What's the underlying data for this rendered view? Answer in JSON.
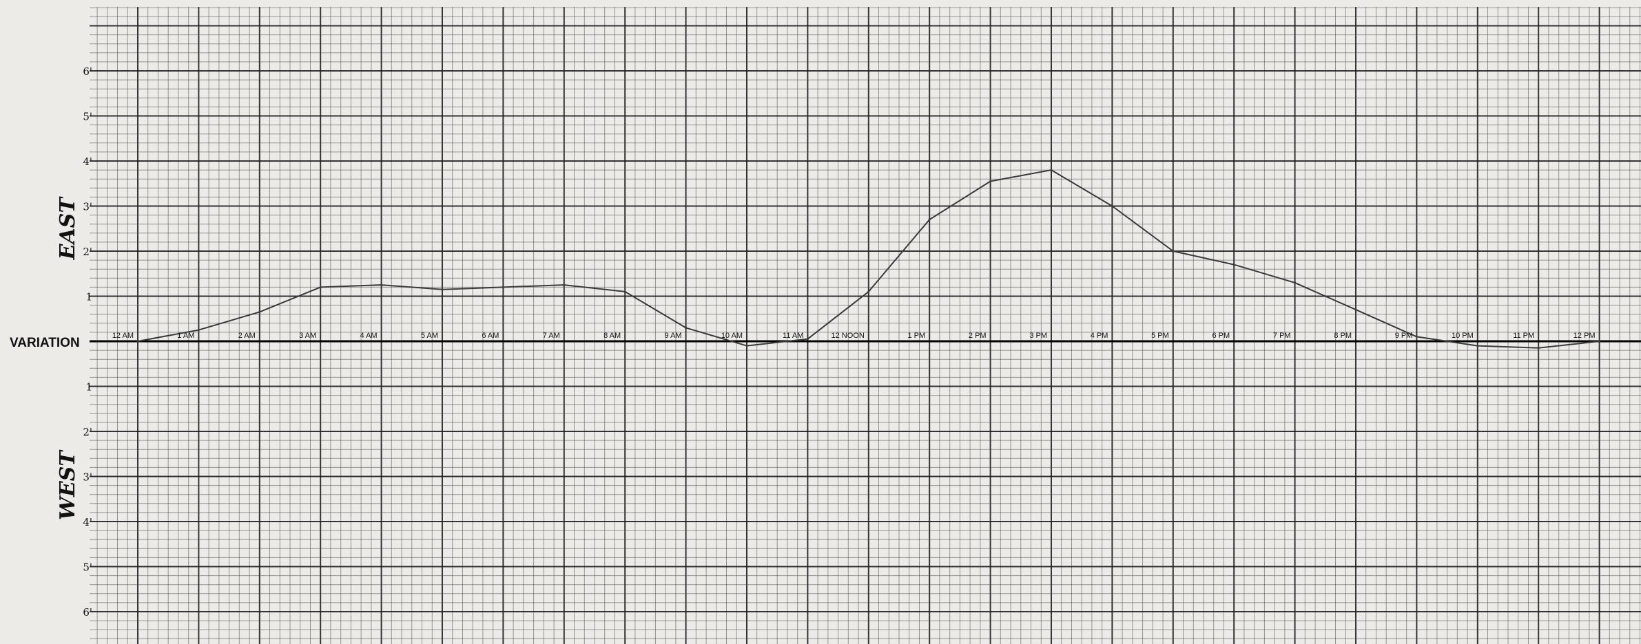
{
  "chart_data": {
    "type": "line",
    "title": "",
    "ylabel_center": "VARIATION",
    "ylabel_upper": "EAST",
    "ylabel_lower": "WEST",
    "yticks_upper": [
      "1",
      "2'",
      "3'",
      "4'",
      "5'",
      "6'"
    ],
    "yticks_lower": [
      "1",
      "2'",
      "3'",
      "4'",
      "5'",
      "6'"
    ],
    "ylim": [
      -6,
      6
    ],
    "grid": true,
    "categories": [
      "12 AM",
      "1 AM",
      "2 AM",
      "3 AM",
      "4 AM",
      "5 AM",
      "6 AM",
      "7 AM",
      "8 AM",
      "9 AM",
      "10 AM",
      "11 AM",
      "12 NOON",
      "1 PM",
      "2 PM",
      "3 PM",
      "4 PM",
      "5 PM",
      "6 PM",
      "7 PM",
      "8 PM",
      "9 PM",
      "10 PM",
      "11 PM",
      "12 PM"
    ],
    "series": [
      {
        "values": [
          0,
          0.25,
          0.65,
          1.2,
          1.25,
          1.15,
          1.2,
          1.25,
          1.1,
          0.3,
          -0.1,
          0.05,
          1.1,
          2.7,
          3.55,
          3.8,
          3.0,
          2.0,
          1.7,
          1.3,
          0.7,
          0.1,
          -0.1,
          -0.15,
          0
        ]
      }
    ]
  },
  "colors": {
    "paper": "#ecebe7",
    "grid_major": "#1c1c1c",
    "grid_minor": "#4a4a4a",
    "line": "#3a3a3a",
    "text": "#111111"
  }
}
